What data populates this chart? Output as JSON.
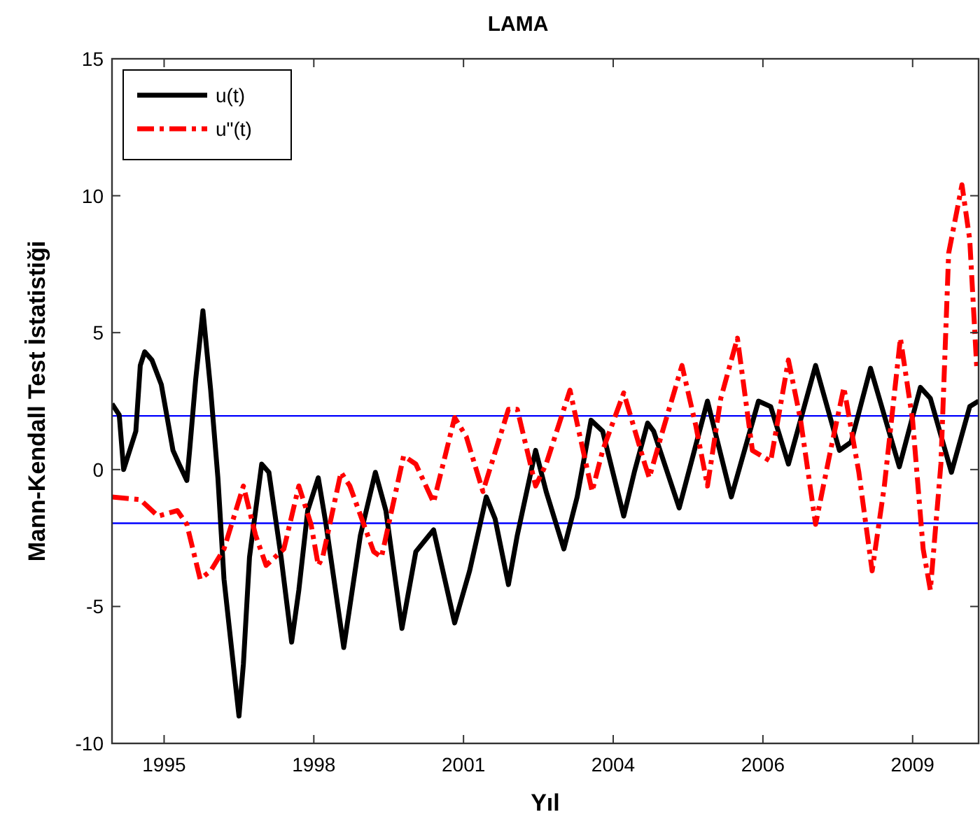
{
  "chart_data": {
    "type": "line",
    "title": "LAMA",
    "xlabel": "Yıl",
    "ylabel": "Mann-Kendall Test İstatistiği",
    "xlim": [
      1994.46,
      2010.09
    ],
    "xticks": [
      {
        "value": 1995.4,
        "label": "1995"
      },
      {
        "value": 1998.1,
        "label": "1998"
      },
      {
        "value": 2000.8,
        "label": "2001"
      },
      {
        "value": 2003.5,
        "label": "2004"
      },
      {
        "value": 2006.2,
        "label": "2006"
      },
      {
        "value": 2008.9,
        "label": "2009"
      }
    ],
    "ylim": [
      -10,
      15
    ],
    "yticks": [
      -10,
      -5,
      0,
      5,
      10,
      15
    ],
    "grid": false,
    "legend": "top left",
    "marker": "none",
    "series": [
      {
        "name": "u(t)",
        "color": "#000000",
        "line_style": "solid",
        "x": [
          1994.46,
          1994.59,
          1994.67,
          1994.89,
          1994.97,
          1995.05,
          1995.18,
          1995.35,
          1995.56,
          1995.67,
          1995.81,
          1995.86,
          1995.97,
          1996.1,
          1996.24,
          1996.37,
          1996.48,
          1996.62,
          1996.75,
          1996.83,
          1996.94,
          1997.16,
          1997.29,
          1997.51,
          1997.7,
          1997.83,
          1997.99,
          1998.18,
          1998.32,
          1998.64,
          1998.94,
          1999.21,
          1999.4,
          1999.69,
          1999.94,
          2000.26,
          2000.64,
          2000.91,
          2001.21,
          2001.37,
          2001.61,
          2001.77,
          2002.1,
          2002.29,
          2002.61,
          2002.85,
          2003.1,
          2003.31,
          2003.69,
          2003.88,
          2004.12,
          2004.23,
          2004.69,
          2005.2,
          2005.63,
          2006.12,
          2006.34,
          2006.66,
          2007.15,
          2007.58,
          2007.79,
          2008.14,
          2008.66,
          2009.04,
          2009.22,
          2009.6,
          2009.93,
          2010.09
        ],
        "values": [
          2.4,
          2.0,
          0,
          1.4,
          3.8,
          4.3,
          4.0,
          3.1,
          0.7,
          0.2,
          -0.4,
          0.7,
          3.3,
          5.8,
          2.9,
          -0.3,
          -4.0,
          -6.6,
          -9.0,
          -7.1,
          -3.2,
          0.2,
          -0.1,
          -3.2,
          -6.3,
          -4.4,
          -1.5,
          -0.3,
          -2.0,
          -6.5,
          -2.4,
          -0.1,
          -1.5,
          -5.8,
          -3.0,
          -2.2,
          -5.6,
          -3.7,
          -1.0,
          -1.8,
          -4.2,
          -2.4,
          0.7,
          -0.8,
          -2.9,
          -1.0,
          1.8,
          1.4,
          -1.7,
          -0.1,
          1.7,
          1.4,
          -1.4,
          2.5,
          -1.0,
          2.5,
          2.3,
          0.2,
          3.8,
          0.7,
          1.0,
          3.7,
          0.1,
          3.0,
          2.6,
          -0.1,
          2.3,
          2.5
        ]
      },
      {
        "name": "u\"(t)",
        "color": "#ff0000",
        "line_style": "dashed",
        "x": [
          1994.46,
          1994.97,
          1995.29,
          1995.64,
          1995.81,
          1996.05,
          1996.24,
          1996.48,
          1996.83,
          1997.05,
          1997.24,
          1997.56,
          1997.83,
          1998.05,
          1998.18,
          1998.26,
          1998.59,
          1998.75,
          1999.18,
          1999.32,
          1999.72,
          1999.94,
          2000.26,
          2000.64,
          2000.85,
          2001.15,
          2001.61,
          2001.77,
          2002.1,
          2002.29,
          2002.72,
          2002.88,
          2003.12,
          2003.31,
          2003.69,
          2004.07,
          2004.15,
          2004.39,
          2004.74,
          2004.99,
          2005.2,
          2005.44,
          2005.74,
          2006.01,
          2006.34,
          2006.66,
          2006.88,
          2007.15,
          2007.42,
          2007.66,
          2007.93,
          2008.17,
          2008.39,
          2008.68,
          2008.9,
          2009.09,
          2009.22,
          2009.41,
          2009.55,
          2009.79,
          2009.93,
          2010.06
        ],
        "values": [
          -1.0,
          -1.1,
          -1.7,
          -1.5,
          -2.0,
          -4.0,
          -3.7,
          -2.9,
          -0.6,
          -2.4,
          -3.5,
          -2.9,
          -0.6,
          -2.0,
          -3.5,
          -3.2,
          -0.1,
          -0.6,
          -3.0,
          -3.2,
          0.5,
          0.2,
          -1.2,
          1.9,
          1.2,
          -0.8,
          2.2,
          2.2,
          -0.6,
          0.2,
          2.9,
          1.4,
          -0.8,
          0.7,
          2.8,
          0.2,
          -0.3,
          1.4,
          3.8,
          1.6,
          -0.6,
          2.6,
          4.8,
          0.7,
          0.3,
          4.0,
          1.8,
          -2.0,
          0.7,
          3.0,
          -0.1,
          -3.7,
          -0.6,
          4.8,
          1.8,
          -2.9,
          -4.4,
          0.2,
          7.9,
          10.4,
          8.4,
          3.6
        ]
      }
    ],
    "ref_lines": [
      {
        "axis": "y",
        "value": 1.96,
        "color": "#0000ff"
      },
      {
        "axis": "y",
        "value": -1.96,
        "color": "#0000ff"
      }
    ]
  }
}
